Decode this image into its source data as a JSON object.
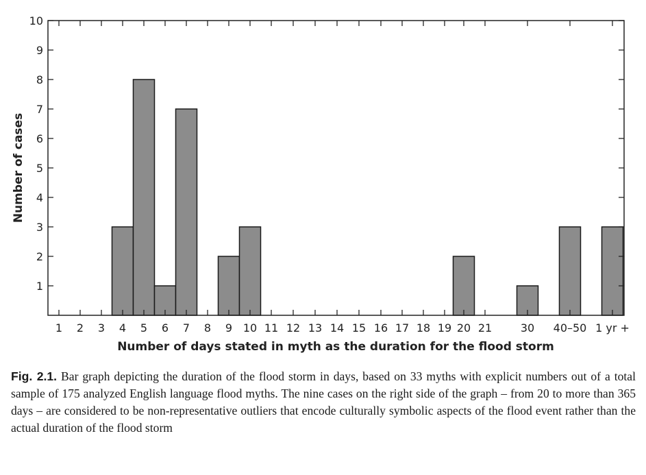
{
  "chart_data": {
    "type": "bar",
    "categories": [
      "1",
      "2",
      "3",
      "4",
      "5",
      "6",
      "7",
      "8",
      "9",
      "10",
      "11",
      "12",
      "13",
      "14",
      "15",
      "16",
      "17",
      "18",
      "19",
      "20",
      "21",
      "30",
      "40–50",
      "1 yr +"
    ],
    "values": [
      0,
      0,
      0,
      3,
      8,
      1,
      7,
      0,
      2,
      3,
      0,
      0,
      0,
      0,
      0,
      0,
      0,
      0,
      0,
      2,
      0,
      1,
      3,
      3
    ],
    "xlabel": "Number of days stated in myth as the duration for the flood storm",
    "ylabel": "Number of cases",
    "ylim": [
      0,
      10
    ],
    "yticks": [
      1,
      2,
      3,
      4,
      5,
      6,
      7,
      8,
      9,
      10
    ],
    "bar_color": "#8c8c8c",
    "grid": false
  },
  "caption": {
    "label": "Fig. 2.1.",
    "text": " Bar graph depicting the duration of the flood storm in days, based on 33 myths with explicit numbers out of a total sample of 175 analyzed English language flood myths. The nine cases on the right side of the graph – from 20 to more than 365 days – are considered to be non-representative outliers that encode culturally symbolic aspects of the flood event rather than the actual duration of the flood storm"
  }
}
